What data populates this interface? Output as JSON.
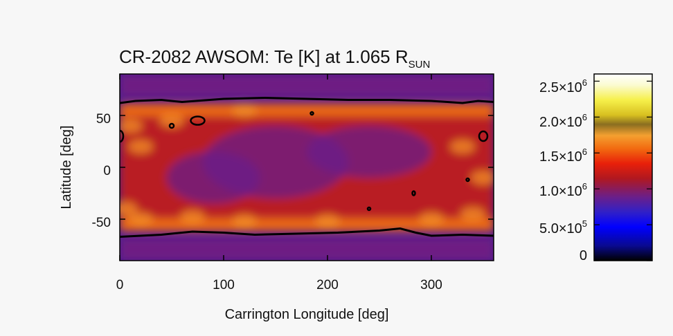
{
  "chart_data": {
    "type": "heatmap",
    "title": "CR-2082 AWSOM: Te [K] at 1.065 R",
    "title_sub": "SUN",
    "xlabel": "Carrington Longitude [deg]",
    "ylabel": "Latitude [deg]",
    "xlim": [
      0,
      360
    ],
    "ylim": [
      -90,
      90
    ],
    "x_ticks": [
      0,
      100,
      200,
      300
    ],
    "x_tick_labels": [
      "0",
      "100",
      "200",
      "300"
    ],
    "y_ticks": [
      50,
      0,
      -50
    ],
    "y_tick_labels": [
      "50",
      "0",
      "-50"
    ],
    "colorbar": {
      "min": 0,
      "max": 2600000,
      "ticks": [
        0,
        500000,
        1000000,
        1500000,
        2000000,
        2500000
      ],
      "tick_mantissas": [
        "0",
        "5.0×10",
        "1.0×10",
        "1.5×10",
        "2.0×10",
        "2.5×10"
      ],
      "tick_exponents": [
        "",
        "5",
        "6",
        "6",
        "6",
        "6"
      ]
    },
    "field_summary": {
      "background_te_K": 900000,
      "closed_field_te_K": 1200000,
      "hot_band_te_K": 1600000,
      "hot_band_latitudes_deg": [
        -55,
        55
      ]
    },
    "contour": {
      "north_boundary_lat_deg": 65,
      "south_boundary_lat_deg": -65
    }
  },
  "colors": {
    "background": "#f7f7f7",
    "contour": "#000000"
  }
}
